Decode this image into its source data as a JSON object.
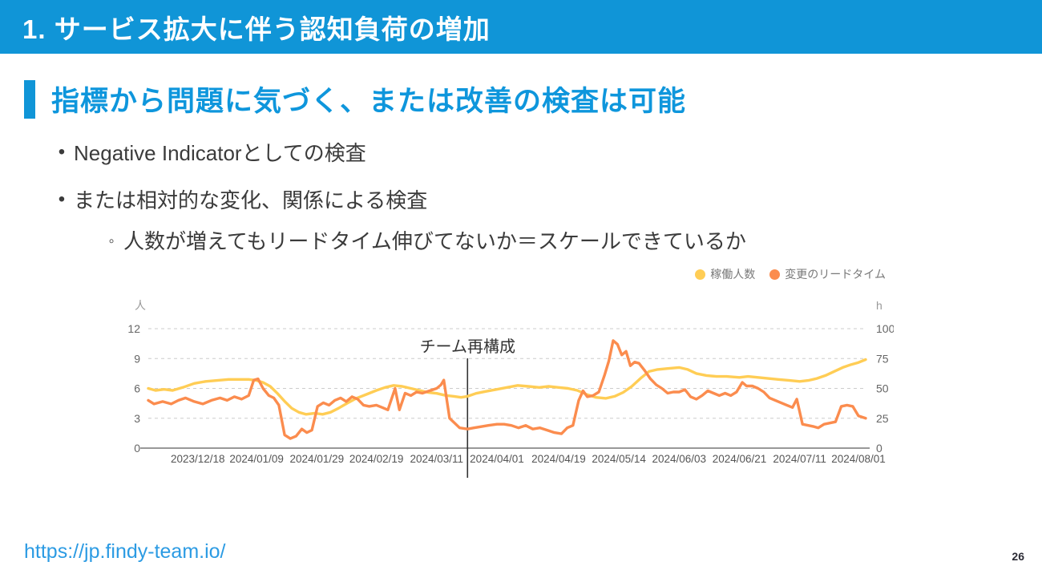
{
  "header": {
    "title": "1. サービス拡大に伴う認知負荷の増加"
  },
  "heading": {
    "title": "指標から問題に気づく、または改善の検査は可能"
  },
  "bullets": {
    "item1": "Negative Indicatorとしての検査",
    "item2": "または相対的な変化、関係による検査",
    "sub1": "人数が増えてもリードタイム伸びてないか＝スケールできているか"
  },
  "footer": {
    "link": "https://jp.findy-team.io/",
    "page_number": "26"
  },
  "colors": {
    "accent_blue": "#1095D7",
    "heading_blue": "#0E96DC",
    "link_blue": "#2C9BE3",
    "series_yellow": "#FFCD55",
    "series_orange": "#FB8C4E",
    "grid_gray": "#cccccc",
    "axis_gray": "#999999",
    "tick_text": "#666666",
    "annotation_dark": "#333333"
  },
  "chart_data": {
    "type": "line",
    "legend": [
      "稼働人数",
      "変更のリードタイム"
    ],
    "annotation": {
      "label": "チーム再構成",
      "x": 0.445
    },
    "axes": {
      "left": {
        "label": "人",
        "ticks": [
          12,
          9,
          6,
          3,
          0
        ],
        "range": [
          0,
          12
        ]
      },
      "right": {
        "label": "h",
        "ticks": [
          100,
          75,
          50,
          25,
          0
        ],
        "range": [
          0,
          100
        ]
      },
      "x": {
        "tick_labels": [
          "2023/12/18",
          "2024/01/09",
          "2024/01/29",
          "2024/02/19",
          "2024/03/11",
          "2024/04/01",
          "2024/04/19",
          "2024/05/14",
          "2024/06/03",
          "2024/06/21",
          "2024/07/11",
          "2024/08/01"
        ],
        "tick_positions": [
          0.069,
          0.151,
          0.235,
          0.318,
          0.402,
          0.486,
          0.572,
          0.656,
          0.74,
          0.824,
          0.908,
          0.99
        ]
      }
    },
    "grid": true,
    "legend_position": "top-right",
    "series": [
      {
        "name": "稼働人数",
        "axis": "left",
        "unit": "人",
        "color": "#FFCD55",
        "points": [
          [
            0.0,
            6.0
          ],
          [
            0.01,
            5.8
          ],
          [
            0.022,
            5.9
          ],
          [
            0.034,
            5.8
          ],
          [
            0.048,
            6.1
          ],
          [
            0.064,
            6.5
          ],
          [
            0.08,
            6.7
          ],
          [
            0.096,
            6.8
          ],
          [
            0.112,
            6.9
          ],
          [
            0.128,
            6.9
          ],
          [
            0.14,
            6.9
          ],
          [
            0.151,
            6.8
          ],
          [
            0.16,
            6.6
          ],
          [
            0.17,
            6.2
          ],
          [
            0.18,
            5.5
          ],
          [
            0.19,
            4.7
          ],
          [
            0.2,
            4.0
          ],
          [
            0.21,
            3.6
          ],
          [
            0.22,
            3.4
          ],
          [
            0.232,
            3.5
          ],
          [
            0.243,
            3.4
          ],
          [
            0.254,
            3.6
          ],
          [
            0.265,
            4.0
          ],
          [
            0.277,
            4.5
          ],
          [
            0.29,
            5.0
          ],
          [
            0.304,
            5.4
          ],
          [
            0.318,
            5.8
          ],
          [
            0.33,
            6.1
          ],
          [
            0.342,
            6.3
          ],
          [
            0.354,
            6.2
          ],
          [
            0.366,
            6.0
          ],
          [
            0.378,
            5.8
          ],
          [
            0.39,
            5.6
          ],
          [
            0.402,
            5.5
          ],
          [
            0.414,
            5.3
          ],
          [
            0.426,
            5.2
          ],
          [
            0.436,
            5.1
          ],
          [
            0.445,
            5.2
          ],
          [
            0.457,
            5.5
          ],
          [
            0.471,
            5.7
          ],
          [
            0.486,
            5.9
          ],
          [
            0.5,
            6.1
          ],
          [
            0.515,
            6.3
          ],
          [
            0.53,
            6.2
          ],
          [
            0.545,
            6.1
          ],
          [
            0.558,
            6.2
          ],
          [
            0.572,
            6.1
          ],
          [
            0.585,
            6.0
          ],
          [
            0.598,
            5.8
          ],
          [
            0.611,
            5.4
          ],
          [
            0.624,
            5.1
          ],
          [
            0.638,
            5.0
          ],
          [
            0.65,
            5.2
          ],
          [
            0.662,
            5.6
          ],
          [
            0.674,
            6.2
          ],
          [
            0.686,
            7.0
          ],
          [
            0.698,
            7.7
          ],
          [
            0.71,
            7.9
          ],
          [
            0.724,
            8.0
          ],
          [
            0.74,
            8.1
          ],
          [
            0.752,
            7.9
          ],
          [
            0.764,
            7.5
          ],
          [
            0.778,
            7.3
          ],
          [
            0.792,
            7.2
          ],
          [
            0.806,
            7.2
          ],
          [
            0.824,
            7.1
          ],
          [
            0.836,
            7.2
          ],
          [
            0.85,
            7.1
          ],
          [
            0.864,
            7.0
          ],
          [
            0.878,
            6.9
          ],
          [
            0.894,
            6.8
          ],
          [
            0.908,
            6.7
          ],
          [
            0.92,
            6.8
          ],
          [
            0.932,
            7.0
          ],
          [
            0.944,
            7.3
          ],
          [
            0.956,
            7.7
          ],
          [
            0.968,
            8.1
          ],
          [
            0.98,
            8.4
          ],
          [
            0.99,
            8.6
          ],
          [
            1.0,
            8.9
          ]
        ]
      },
      {
        "name": "変更のリードタイム",
        "axis": "right",
        "unit": "h",
        "color": "#FB8C4E",
        "points": [
          [
            0.0,
            40
          ],
          [
            0.008,
            37
          ],
          [
            0.02,
            39
          ],
          [
            0.032,
            37
          ],
          [
            0.042,
            40
          ],
          [
            0.052,
            42
          ],
          [
            0.064,
            39
          ],
          [
            0.076,
            37
          ],
          [
            0.088,
            40
          ],
          [
            0.1,
            42
          ],
          [
            0.11,
            40
          ],
          [
            0.12,
            43
          ],
          [
            0.13,
            41
          ],
          [
            0.14,
            44
          ],
          [
            0.147,
            57
          ],
          [
            0.153,
            58
          ],
          [
            0.16,
            50
          ],
          [
            0.168,
            44
          ],
          [
            0.175,
            42
          ],
          [
            0.182,
            36
          ],
          [
            0.19,
            11
          ],
          [
            0.198,
            8
          ],
          [
            0.206,
            10
          ],
          [
            0.214,
            16
          ],
          [
            0.221,
            13
          ],
          [
            0.228,
            15
          ],
          [
            0.236,
            35
          ],
          [
            0.244,
            38
          ],
          [
            0.252,
            36
          ],
          [
            0.26,
            40
          ],
          [
            0.268,
            42
          ],
          [
            0.276,
            39
          ],
          [
            0.284,
            43
          ],
          [
            0.292,
            41
          ],
          [
            0.3,
            36
          ],
          [
            0.308,
            35
          ],
          [
            0.318,
            36
          ],
          [
            0.326,
            34
          ],
          [
            0.334,
            32
          ],
          [
            0.344,
            50
          ],
          [
            0.35,
            32
          ],
          [
            0.358,
            46
          ],
          [
            0.366,
            44
          ],
          [
            0.374,
            47
          ],
          [
            0.382,
            46
          ],
          [
            0.392,
            48
          ],
          [
            0.402,
            50
          ],
          [
            0.408,
            53
          ],
          [
            0.412,
            57
          ],
          [
            0.42,
            25
          ],
          [
            0.427,
            21
          ],
          [
            0.434,
            17
          ],
          [
            0.445,
            16
          ],
          [
            0.454,
            17
          ],
          [
            0.464,
            18
          ],
          [
            0.474,
            19
          ],
          [
            0.486,
            20
          ],
          [
            0.496,
            20
          ],
          [
            0.506,
            19
          ],
          [
            0.516,
            17
          ],
          [
            0.526,
            19
          ],
          [
            0.536,
            16
          ],
          [
            0.546,
            17
          ],
          [
            0.556,
            15
          ],
          [
            0.566,
            13
          ],
          [
            0.576,
            12
          ],
          [
            0.584,
            17
          ],
          [
            0.592,
            19
          ],
          [
            0.6,
            40
          ],
          [
            0.606,
            48
          ],
          [
            0.612,
            43
          ],
          [
            0.62,
            44
          ],
          [
            0.628,
            47
          ],
          [
            0.636,
            61
          ],
          [
            0.642,
            73
          ],
          [
            0.648,
            90
          ],
          [
            0.654,
            87
          ],
          [
            0.66,
            78
          ],
          [
            0.666,
            81
          ],
          [
            0.672,
            69
          ],
          [
            0.678,
            72
          ],
          [
            0.684,
            71
          ],
          [
            0.692,
            65
          ],
          [
            0.7,
            58
          ],
          [
            0.708,
            53
          ],
          [
            0.716,
            50
          ],
          [
            0.724,
            46
          ],
          [
            0.732,
            47
          ],
          [
            0.74,
            47
          ],
          [
            0.748,
            49
          ],
          [
            0.756,
            43
          ],
          [
            0.764,
            41
          ],
          [
            0.772,
            44
          ],
          [
            0.78,
            48
          ],
          [
            0.788,
            46
          ],
          [
            0.796,
            44
          ],
          [
            0.804,
            46
          ],
          [
            0.812,
            44
          ],
          [
            0.82,
            47
          ],
          [
            0.828,
            55
          ],
          [
            0.834,
            52
          ],
          [
            0.842,
            52
          ],
          [
            0.85,
            50
          ],
          [
            0.858,
            47
          ],
          [
            0.866,
            42
          ],
          [
            0.874,
            40
          ],
          [
            0.882,
            38
          ],
          [
            0.89,
            36
          ],
          [
            0.898,
            34
          ],
          [
            0.904,
            41
          ],
          [
            0.912,
            20
          ],
          [
            0.92,
            19
          ],
          [
            0.928,
            18
          ],
          [
            0.934,
            17
          ],
          [
            0.942,
            20
          ],
          [
            0.95,
            21
          ],
          [
            0.958,
            22
          ],
          [
            0.966,
            35
          ],
          [
            0.974,
            36
          ],
          [
            0.982,
            35
          ],
          [
            0.99,
            27
          ],
          [
            1.0,
            25
          ]
        ]
      }
    ]
  }
}
